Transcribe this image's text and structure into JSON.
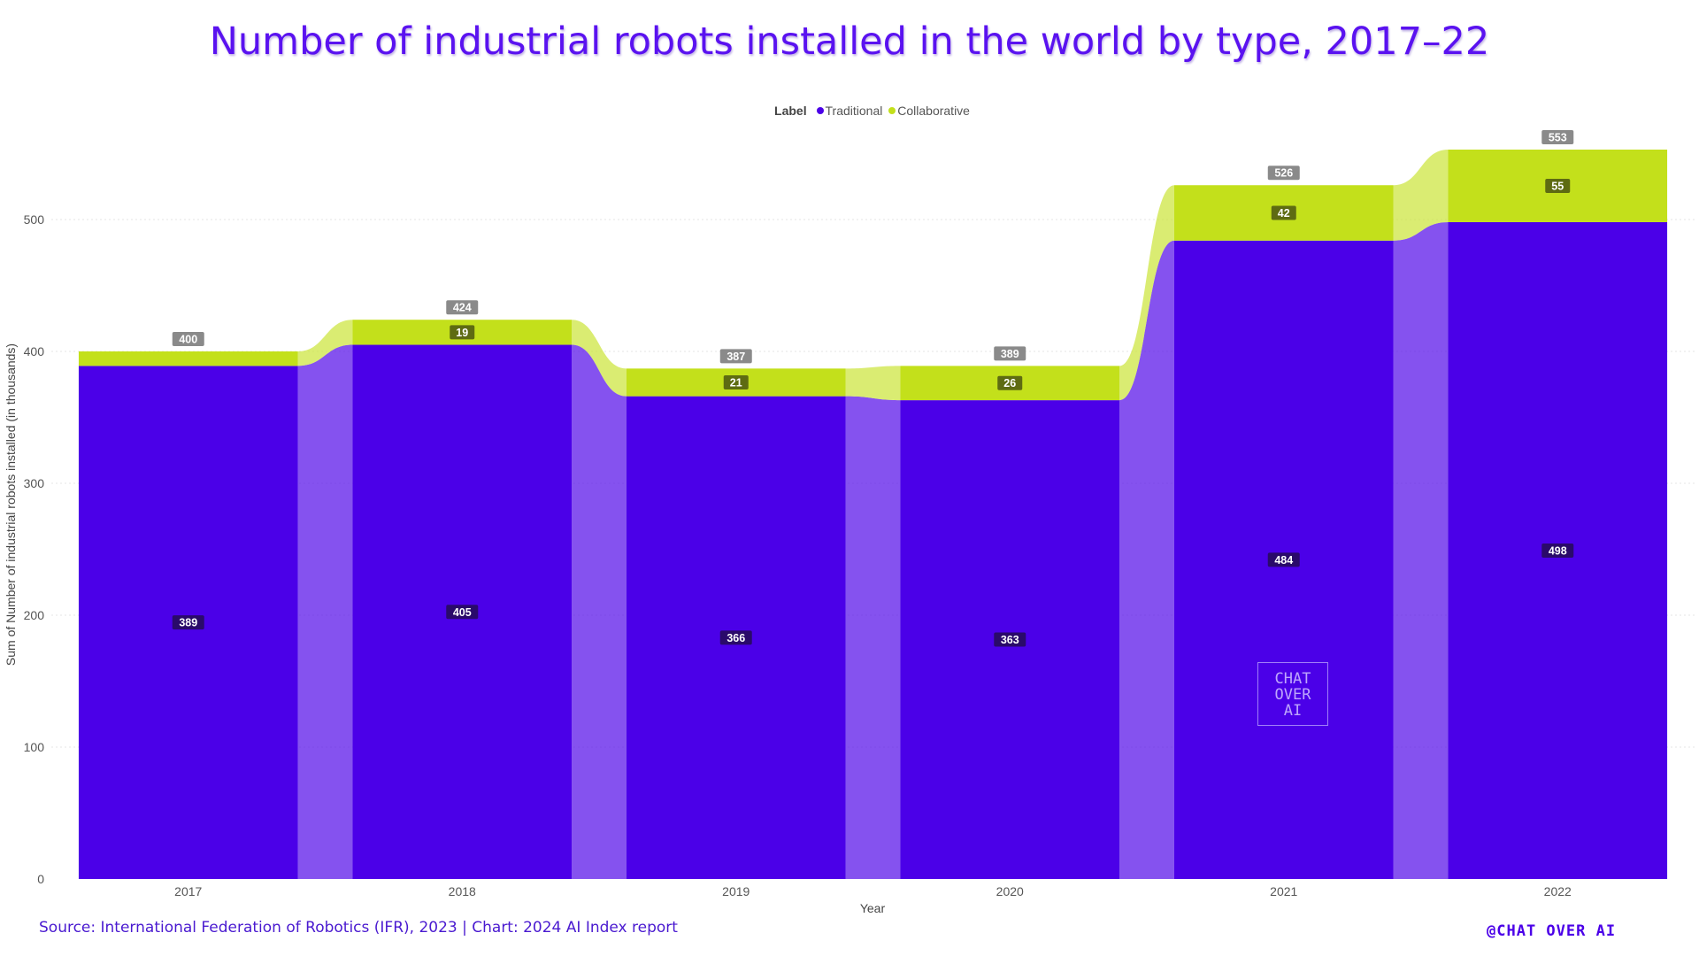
{
  "title": "Number of industrial robots installed in the world by type, 2017–22",
  "legend": {
    "title": "Label"
  },
  "source": "Source: International Federation of Robotics (IFR), 2023 | Chart: 2024 AI Index report",
  "brand": "@CHAT OVER AI",
  "watermark": {
    "line1": "CHAT",
    "line2": "OVER",
    "line3": "AI"
  },
  "colors": {
    "traditional": "#4b00e8",
    "collaborative": "#c3e01b",
    "total_label_bg": "#8a8a8a"
  },
  "chart_data": {
    "type": "bar",
    "stacked": true,
    "categories": [
      "2017",
      "2018",
      "2019",
      "2020",
      "2021",
      "2022"
    ],
    "series": [
      {
        "name": "Traditional",
        "values": [
          389,
          405,
          366,
          363,
          484,
          498
        ]
      },
      {
        "name": "Collaborative",
        "values": [
          11,
          19,
          21,
          26,
          42,
          55
        ]
      }
    ],
    "totals": [
      400,
      424,
      387,
      389,
      526,
      553
    ],
    "collab_labels": [
      "",
      "19",
      "21",
      "26",
      "42",
      "55"
    ],
    "ylim": [
      0,
      553
    ],
    "yticks": [
      0,
      100,
      200,
      300,
      400,
      500
    ],
    "xlabel": "Year",
    "ylabel": "Sum of Number of industrial robots installed (in thousands)",
    "grid": true,
    "legend_position": "top-center"
  }
}
